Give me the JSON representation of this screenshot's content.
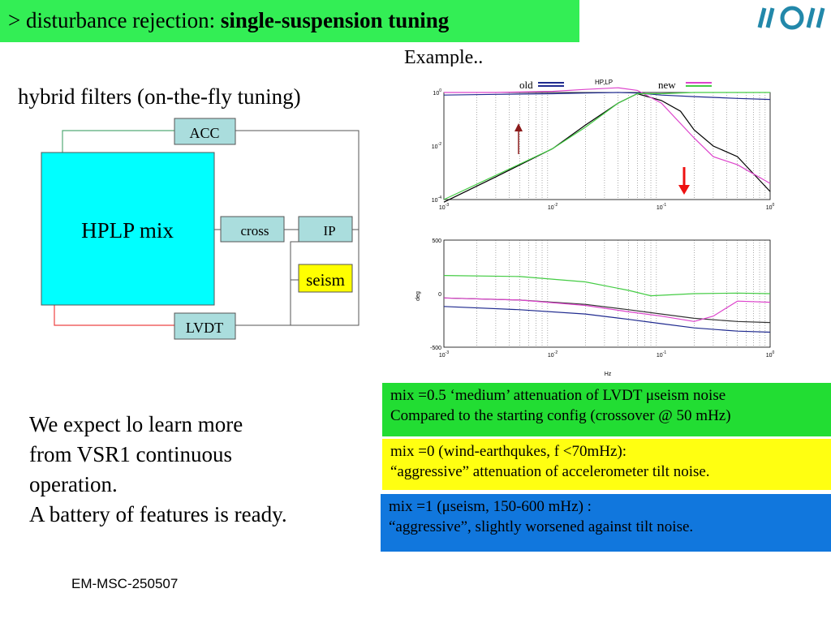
{
  "header": {
    "prefix": ">  disturbance rejection: ",
    "title_bold": "single-suspension tuning"
  },
  "example_label": "Example..",
  "subtitle": "hybrid filters (on-the-fly tuning)",
  "diagram": {
    "main_block": "HPLP mix",
    "acc": "ACC",
    "cross": "cross",
    "ip": "IP",
    "seism": "seism",
    "lvdt": "LVDT",
    "colors": {
      "main_fill": "#00ffff",
      "block_fill": "#aadddd",
      "seism_fill": "#ffff00",
      "acc_wire": "#55aa77",
      "lvdt_wire": "#ee4444"
    }
  },
  "legend": {
    "old": "old",
    "plot_title": "HP,LP",
    "new": "new"
  },
  "chart_data": [
    {
      "type": "line",
      "scale": "log-log",
      "xlim": [
        0.001,
        1
      ],
      "xticks": [
        "10-3",
        "10-2",
        "10-1",
        "100"
      ],
      "yticks": [
        "10-4",
        "10-2",
        "100"
      ],
      "ylim": [
        0.0001,
        1
      ],
      "series": [
        {
          "name": "old",
          "color": "#1f2a8f",
          "x": [
            0.001,
            0.003,
            0.01,
            0.02,
            0.04,
            0.06,
            0.1,
            0.2,
            0.5,
            1
          ],
          "y": [
            0.8,
            0.85,
            0.9,
            0.95,
            1.0,
            0.95,
            0.8,
            0.7,
            0.6,
            0.55
          ]
        },
        {
          "name": "old",
          "color": "#000000",
          "x": [
            0.001,
            0.003,
            0.01,
            0.02,
            0.04,
            0.06,
            0.1,
            0.15,
            0.2,
            0.3,
            0.5,
            1
          ],
          "y": [
            8e-05,
            0.0007,
            0.008,
            0.06,
            0.4,
            0.9,
            0.5,
            0.2,
            0.04,
            0.01,
            0.004,
            0.0002
          ]
        },
        {
          "name": "new",
          "color": "#dd44cc",
          "x": [
            0.001,
            0.003,
            0.01,
            0.02,
            0.04,
            0.06,
            0.1,
            0.2,
            0.3,
            0.5,
            1
          ],
          "y": [
            1,
            1,
            1.1,
            1.3,
            1.5,
            1.2,
            0.4,
            0.02,
            0.004,
            0.002,
            0.0004
          ]
        },
        {
          "name": "new",
          "color": "#44cc44",
          "x": [
            0.001,
            0.003,
            0.01,
            0.02,
            0.04,
            0.06,
            0.1,
            0.2,
            0.5,
            1
          ],
          "y": [
            0.0001,
            0.0008,
            0.008,
            0.05,
            0.4,
            0.9,
            0.9,
            1,
            1,
            1
          ]
        }
      ]
    },
    {
      "type": "line",
      "scale": "log-x",
      "xlim": [
        0.001,
        1
      ],
      "xticks": [
        "10-3",
        "10-2",
        "10-1",
        "100"
      ],
      "ylim": [
        -500,
        500
      ],
      "yticks": [
        "500",
        "0",
        "-500"
      ],
      "ylabel": "deg",
      "xlabel": "Hz",
      "series": [
        {
          "name": "new",
          "color": "#44cc44",
          "x": [
            0.001,
            0.005,
            0.02,
            0.05,
            0.08,
            0.2,
            0.5,
            1
          ],
          "y": [
            170,
            160,
            110,
            30,
            -20,
            0,
            5,
            0
          ]
        },
        {
          "name": "old",
          "color": "#333333",
          "x": [
            0.001,
            0.005,
            0.02,
            0.05,
            0.1,
            0.2,
            0.5,
            1
          ],
          "y": [
            -40,
            -60,
            -100,
            -150,
            -190,
            -230,
            -260,
            -270
          ]
        },
        {
          "name": "new",
          "color": "#dd44cc",
          "x": [
            0.001,
            0.005,
            0.02,
            0.05,
            0.1,
            0.2,
            0.3,
            0.5,
            1
          ],
          "y": [
            -40,
            -60,
            -110,
            -170,
            -210,
            -260,
            -210,
            -70,
            -80
          ]
        },
        {
          "name": "old",
          "color": "#1f2a8f",
          "x": [
            0.001,
            0.005,
            0.02,
            0.05,
            0.1,
            0.2,
            0.5,
            1
          ],
          "y": [
            -120,
            -150,
            -190,
            -240,
            -280,
            -320,
            -350,
            -360
          ]
        }
      ]
    }
  ],
  "info_boxes": [
    {
      "line1": "mix =0.5 ‘medium’ attenuation of LVDT μseism noise",
      "line2": "Compared to the starting config (crossover @ 50 mHz)",
      "color": "#22dd33"
    },
    {
      "line1": "mix =0 (wind-earthqukes, f <70mHz):",
      "line2": "“aggressive” attenuation of accelerometer tilt noise.",
      "color": "#ffff11"
    },
    {
      "line1": "mix =1 (μseism, 150-600 mHz) :",
      "line2": "“aggressive”,   slightly worsened against tilt noise.",
      "color": "#1177dd"
    }
  ],
  "expect": [
    "We expect lo learn more",
    "from VSR1 continuous",
    "operation.",
    "A battery of features is ready."
  ],
  "footer": "EM-MSC-250507"
}
